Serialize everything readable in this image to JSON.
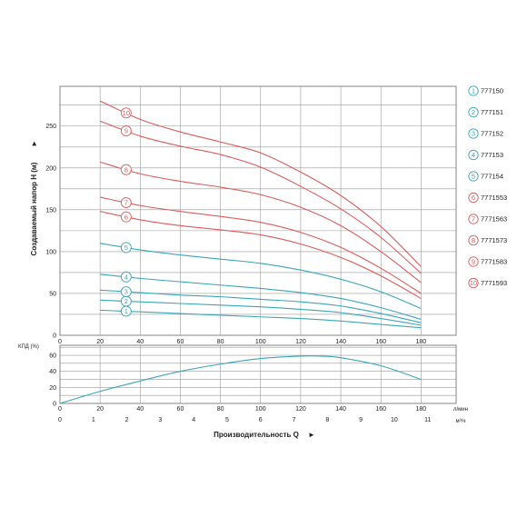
{
  "chart_data": [
    {
      "type": "line",
      "ylabel": "Создаваемый напор H (м)",
      "ylabel_arrow": "►",
      "x_unit": "л/мин",
      "ylim": [
        0,
        290
      ],
      "xlim": [
        0,
        185
      ],
      "yticks": [
        "0",
        "50",
        "100",
        "150",
        "200",
        "250"
      ],
      "ytick_values": [
        0,
        50,
        100,
        150,
        200,
        250
      ],
      "grid": true,
      "legend_position": "right",
      "series": [
        {
          "id": "1",
          "name": "777150",
          "color": "#3aa6b9",
          "x": [
            20,
            40,
            60,
            80,
            100,
            120,
            140,
            160,
            180
          ],
          "y": [
            30,
            28,
            26,
            24,
            22,
            20,
            17,
            13,
            9
          ]
        },
        {
          "id": "2",
          "name": "777151",
          "color": "#3aa6b9",
          "x": [
            20,
            40,
            60,
            80,
            100,
            120,
            140,
            160,
            180
          ],
          "y": [
            42,
            40,
            38,
            36,
            34,
            31,
            27,
            20,
            12
          ]
        },
        {
          "id": "3",
          "name": "777152",
          "color": "#3aa6b9",
          "x": [
            20,
            40,
            60,
            80,
            100,
            120,
            140,
            160,
            180
          ],
          "y": [
            54,
            51,
            48,
            46,
            43,
            40,
            35,
            26,
            15
          ]
        },
        {
          "id": "4",
          "name": "777153",
          "color": "#3aa6b9",
          "x": [
            20,
            40,
            60,
            80,
            100,
            120,
            140,
            160,
            180
          ],
          "y": [
            73,
            68,
            64,
            60,
            56,
            51,
            44,
            33,
            19
          ]
        },
        {
          "id": "5",
          "name": "777154",
          "color": "#3aa6b9",
          "x": [
            20,
            40,
            60,
            80,
            100,
            120,
            140,
            160,
            180
          ],
          "y": [
            110,
            102,
            96,
            91,
            86,
            78,
            67,
            52,
            32
          ]
        },
        {
          "id": "6",
          "name": "7771553",
          "color": "#e05a5a",
          "x": [
            20,
            40,
            60,
            80,
            100,
            120,
            140,
            160,
            180
          ],
          "y": [
            148,
            138,
            131,
            126,
            120,
            109,
            93,
            71,
            44
          ]
        },
        {
          "id": "7",
          "name": "7771563",
          "color": "#e05a5a",
          "x": [
            20,
            40,
            60,
            80,
            100,
            120,
            140,
            160,
            180
          ],
          "y": [
            165,
            155,
            148,
            142,
            135,
            123,
            105,
            80,
            50
          ]
        },
        {
          "id": "8",
          "name": "7771573",
          "color": "#e05a5a",
          "x": [
            20,
            40,
            60,
            80,
            100,
            120,
            140,
            160,
            180
          ],
          "y": [
            207,
            193,
            184,
            177,
            168,
            153,
            131,
            100,
            63
          ]
        },
        {
          "id": "9",
          "name": "7771583",
          "color": "#e05a5a",
          "x": [
            20,
            40,
            60,
            80,
            100,
            120,
            140,
            160,
            180
          ],
          "y": [
            256,
            238,
            226,
            216,
            201,
            178,
            151,
            117,
            74
          ]
        },
        {
          "id": "10",
          "name": "7771593",
          "color": "#e05a5a",
          "x": [
            20,
            40,
            60,
            80,
            100,
            120,
            140,
            160,
            180
          ],
          "y": [
            280,
            258,
            243,
            231,
            218,
            195,
            167,
            130,
            82
          ]
        }
      ]
    },
    {
      "type": "line",
      "ylabel": "КПД (%)",
      "ylim": [
        0,
        70
      ],
      "yticks": [
        "0",
        "20",
        "40",
        "60"
      ],
      "ytick_values": [
        0,
        20,
        40,
        60
      ],
      "x_unit": "л/мин",
      "x_unit2": "м³/ч",
      "xticks": [
        "0",
        "20",
        "40",
        "60",
        "80",
        "100",
        "120",
        "140",
        "160",
        "180"
      ],
      "xtick_values": [
        0,
        20,
        40,
        60,
        80,
        100,
        120,
        140,
        160,
        180
      ],
      "xticks2": [
        "0",
        "1",
        "2",
        "3",
        "4",
        "5",
        "6",
        "7",
        "8",
        "9",
        "10",
        "11"
      ],
      "xlabel": "Производительность Q",
      "xlabel_arrow": "►",
      "grid": true,
      "series": [
        {
          "name": "",
          "color": "#3aa6b9",
          "x": [
            0,
            20,
            40,
            60,
            80,
            100,
            120,
            130,
            140,
            160,
            180
          ],
          "y": [
            0,
            15,
            28,
            40,
            49,
            56,
            59,
            59,
            57,
            47,
            30
          ]
        }
      ]
    }
  ]
}
